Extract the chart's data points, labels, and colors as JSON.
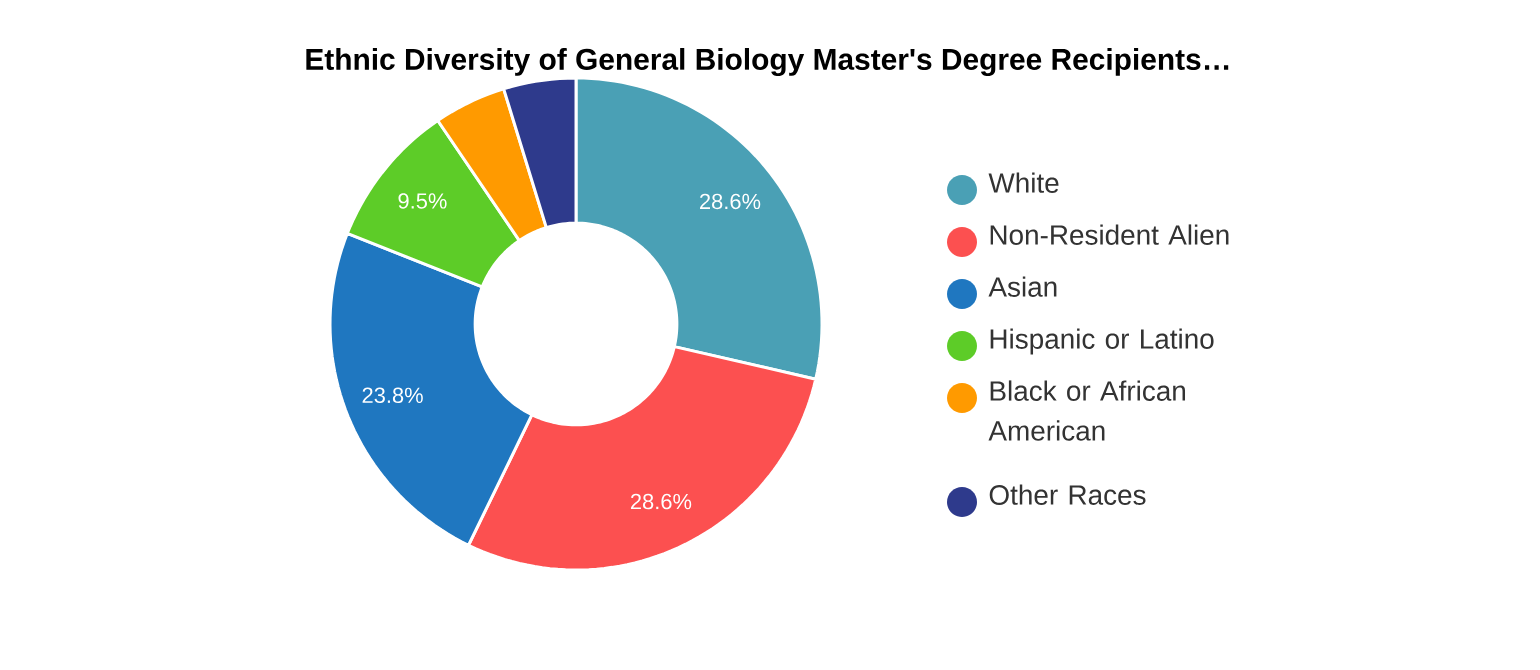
{
  "chart_data": {
    "type": "donut",
    "title": "Ethnic Diversity of General Biology Master's Degree Recipients…",
    "categories": [
      "White",
      "Non-Resident Alien",
      "Asian",
      "Hispanic or Latino",
      "Black or African American",
      "Other Races"
    ],
    "values": [
      28.6,
      28.6,
      23.8,
      9.5,
      4.75,
      4.75
    ],
    "value_labels": [
      "28.6%",
      "28.6%",
      "23.8%",
      "9.5%",
      null,
      null
    ],
    "colors": [
      "#4aa0b5",
      "#fc5050",
      "#1f77c0",
      "#5dcc28",
      "#ff9a00",
      "#2e3a8c"
    ],
    "legend": "right"
  }
}
